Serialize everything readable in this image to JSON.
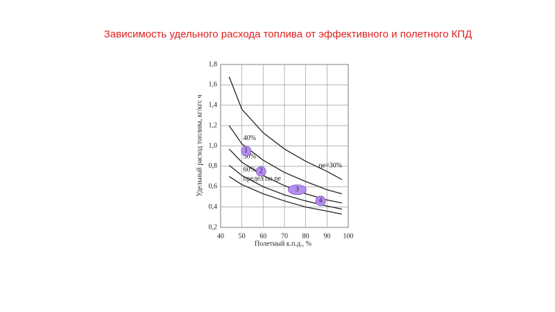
{
  "chart_data": {
    "type": "line",
    "title": "Зависимость удельного расхода топлива от эффективного и полетного КПД",
    "x_label": "Полетный к.п.д., %",
    "y_label": "Удельный расход топлива, кг/кгс ч",
    "x": [
      44,
      50,
      60,
      70,
      80,
      90,
      97
    ],
    "series": [
      {
        "name": "ηe=30%",
        "color": "#222222",
        "values": [
          1.68,
          1.36,
          1.13,
          0.97,
          0.85,
          0.75,
          0.67
        ]
      },
      {
        "name": "40%",
        "color": "#222222",
        "values": [
          1.2,
          1.02,
          0.86,
          0.74,
          0.65,
          0.57,
          0.53
        ]
      },
      {
        "name": "50%",
        "color": "#222222",
        "values": [
          0.97,
          0.84,
          0.71,
          0.61,
          0.53,
          0.47,
          0.44
        ]
      },
      {
        "name": "60%",
        "color": "#222222",
        "values": [
          0.81,
          0.71,
          0.6,
          0.52,
          0.46,
          0.41,
          0.38
        ]
      },
      {
        "name": "предел по ηе",
        "color": "#222222",
        "values": [
          0.7,
          0.62,
          0.53,
          0.46,
          0.4,
          0.36,
          0.33
        ]
      }
    ],
    "points": [
      {
        "label": "1",
        "x": 52,
        "y": 0.95
      },
      {
        "label": "2",
        "x": 59,
        "y": 0.75
      },
      {
        "label": "3",
        "x": 76,
        "y": 0.57
      },
      {
        "label": "4",
        "x": 87,
        "y": 0.46
      }
    ],
    "point_color": "#b48ef0",
    "xlim": [
      40,
      100
    ],
    "xticks": [
      40,
      50,
      60,
      70,
      80,
      90,
      100
    ],
    "ylim": [
      0.2,
      1.8
    ],
    "yticks": [
      {
        "value": 0.2,
        "label": "0,2"
      },
      {
        "value": 0.4,
        "label": "0,4"
      },
      {
        "value": 0.6,
        "label": "0,6"
      },
      {
        "value": 0.8,
        "label": "0,8"
      },
      {
        "value": 1.0,
        "label": "1,0"
      },
      {
        "value": 1.2,
        "label": "1,2"
      },
      {
        "value": 1.4,
        "label": "1,4"
      },
      {
        "value": 1.6,
        "label": "1,6"
      },
      {
        "value": 1.8,
        "label": "1,8"
      }
    ],
    "grid": true
  }
}
